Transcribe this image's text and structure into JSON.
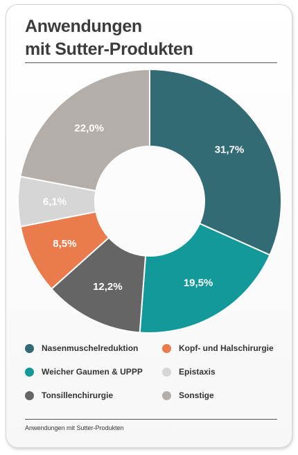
{
  "header": {
    "title_line1": "Anwendungen",
    "title_line2": "mit Sutter-Produkten"
  },
  "caption": "Anwendungen mit Sutter-Produkten",
  "chart_data": {
    "type": "pie",
    "variant": "donut",
    "title": "Anwendungen mit Sutter-Produkten",
    "legend_position": "bottom",
    "categories": [
      "Nasenmuschelreduktion",
      "Weicher Gaumen & UPPP",
      "Tonsillenchirurgie",
      "Kopf- und Halschirurgie",
      "Epistaxis",
      "Sonstige"
    ],
    "values": [
      31.7,
      19.5,
      12.2,
      8.5,
      6.1,
      22.0
    ],
    "labels": [
      "31,7%",
      "19,5%",
      "12,2%",
      "8,5%",
      "6,1%",
      "22,0%"
    ],
    "colors": [
      "#336b74",
      "#14999a",
      "#656565",
      "#e97b4c",
      "#d6d6d6",
      "#b3aeaa"
    ]
  },
  "legend": [
    {
      "label": "Nasenmuschelreduktion",
      "color": "#336b74"
    },
    {
      "label": "Weicher Gaumen & UPPP",
      "color": "#14999a"
    },
    {
      "label": "Tonsillenchirurgie",
      "color": "#656565"
    },
    {
      "label": "Kopf- und Halschirurgie",
      "color": "#e97b4c"
    },
    {
      "label": "Epistaxis",
      "color": "#d6d6d6"
    },
    {
      "label": "Sonstige",
      "color": "#b3aeaa"
    }
  ]
}
